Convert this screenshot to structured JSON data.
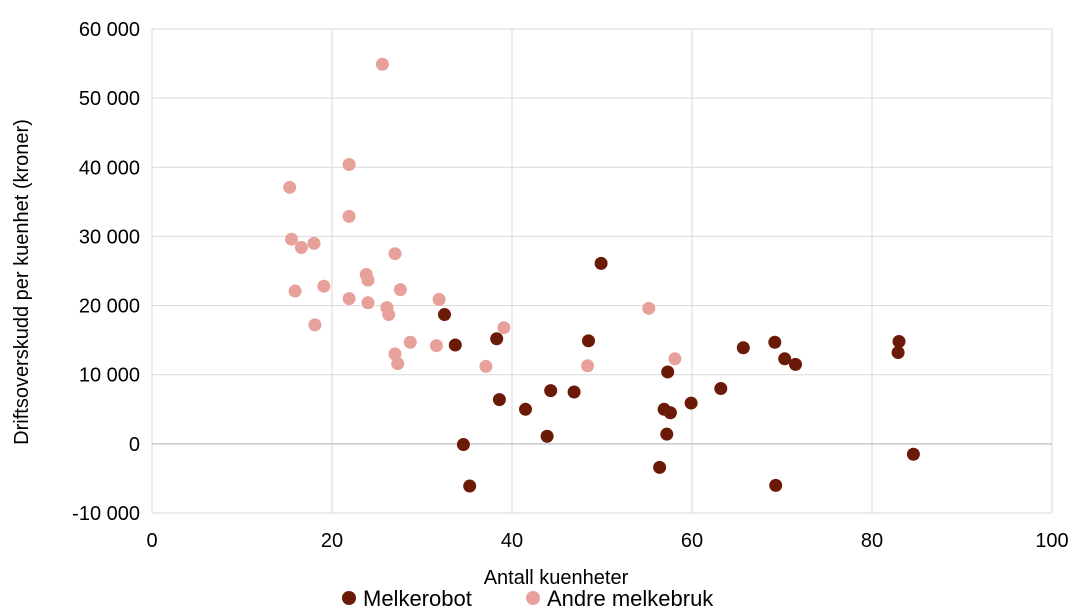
{
  "chart_data": {
    "type": "scatter",
    "title": "",
    "xlabel": "Antall kuenheter",
    "ylabel": "Driftsoverskudd per kuenhet (kroner)",
    "xlim": [
      0,
      100
    ],
    "ylim": [
      -10000,
      60000
    ],
    "x_ticks": [
      0,
      20,
      40,
      60,
      80,
      100
    ],
    "x_tick_labels": [
      "0",
      "20",
      "40",
      "60",
      "80",
      "100"
    ],
    "y_ticks": [
      -10000,
      0,
      10000,
      20000,
      30000,
      40000,
      50000,
      60000
    ],
    "y_tick_labels": [
      "-10 000",
      "0",
      "10 000",
      "20 000",
      "30 000",
      "40 000",
      "50 000",
      "60 000"
    ],
    "grid": true,
    "legend_position": "bottom",
    "series": [
      {
        "name": "Melkerobot",
        "color": "#6b1a07",
        "points": [
          [
            32.5,
            18700
          ],
          [
            33.7,
            14300
          ],
          [
            34.6,
            -100
          ],
          [
            35.3,
            -6100
          ],
          [
            38.3,
            15200
          ],
          [
            38.6,
            6400
          ],
          [
            41.5,
            5000
          ],
          [
            43.9,
            1100
          ],
          [
            44.3,
            7700
          ],
          [
            46.9,
            7500
          ],
          [
            48.5,
            14900
          ],
          [
            49.9,
            26100
          ],
          [
            56.4,
            -3400
          ],
          [
            56.9,
            5000
          ],
          [
            57.2,
            1400
          ],
          [
            57.3,
            10400
          ],
          [
            57.6,
            4500
          ],
          [
            59.9,
            5900
          ],
          [
            63.2,
            8000
          ],
          [
            65.7,
            13900
          ],
          [
            69.2,
            14700
          ],
          [
            69.3,
            -6000
          ],
          [
            70.3,
            12300
          ],
          [
            71.5,
            11500
          ],
          [
            82.9,
            13200
          ],
          [
            83.0,
            14800
          ],
          [
            84.6,
            -1500
          ]
        ]
      },
      {
        "name": "Andre melkebruk",
        "color": "#e8a09a",
        "points": [
          [
            15.3,
            37100
          ],
          [
            15.5,
            29600
          ],
          [
            15.9,
            22100
          ],
          [
            16.6,
            28400
          ],
          [
            18.0,
            29000
          ],
          [
            18.1,
            17200
          ],
          [
            19.1,
            22800
          ],
          [
            21.9,
            40400
          ],
          [
            21.9,
            32900
          ],
          [
            21.9,
            21000
          ],
          [
            23.8,
            24500
          ],
          [
            24.0,
            23700
          ],
          [
            24.0,
            20400
          ],
          [
            25.6,
            54900
          ],
          [
            26.1,
            19700
          ],
          [
            26.3,
            18700
          ],
          [
            27.0,
            27500
          ],
          [
            27.0,
            13000
          ],
          [
            27.3,
            11600
          ],
          [
            27.6,
            22300
          ],
          [
            28.7,
            14700
          ],
          [
            31.6,
            14200
          ],
          [
            31.9,
            20900
          ],
          [
            37.1,
            11200
          ],
          [
            39.1,
            16800
          ],
          [
            48.4,
            11300
          ],
          [
            55.2,
            19600
          ],
          [
            58.1,
            12300
          ]
        ]
      }
    ]
  }
}
